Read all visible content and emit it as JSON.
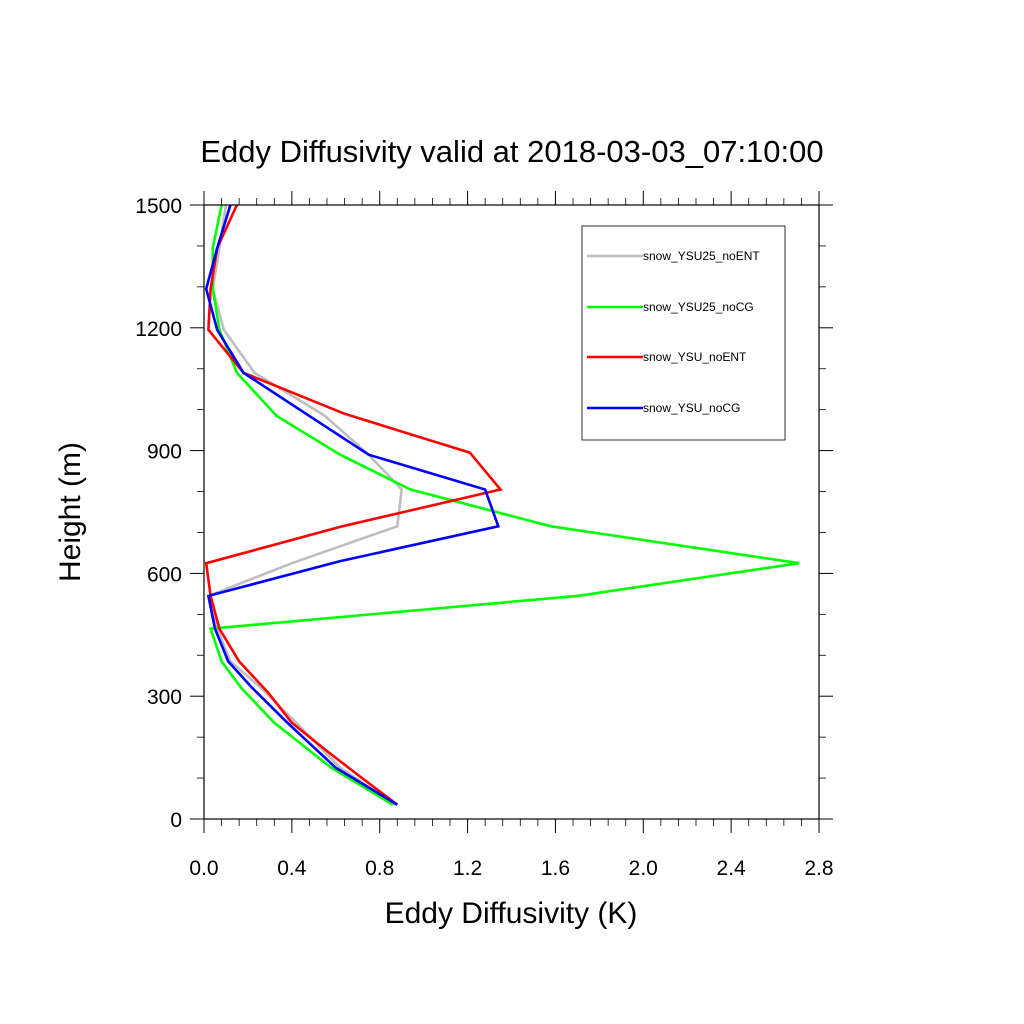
{
  "chart_data": {
    "type": "line",
    "title": "Eddy Diffusivity valid at 2018-03-03_07:10:00",
    "xlabel": "Eddy Diffusivity (K)",
    "ylabel": "Height (m)",
    "xlim": [
      0.0,
      2.8
    ],
    "ylim": [
      0,
      1500
    ],
    "xticks": [
      0.0,
      0.4,
      0.8,
      1.2,
      1.6,
      2.0,
      2.4,
      2.8
    ],
    "xtick_labels": [
      "0.0",
      "0.4",
      "0.8",
      "1.2",
      "1.6",
      "2.0",
      "2.4",
      "2.8"
    ],
    "yticks": [
      0,
      300,
      600,
      900,
      1200,
      1500
    ],
    "ytick_labels": [
      "0",
      "300",
      "600",
      "900",
      "1200",
      "1500"
    ],
    "grid": false,
    "legend_position": "top-right",
    "series": [
      {
        "name": "snow_YSU25_noENT",
        "color": "#bebebe",
        "points": [
          [
            0.87,
            35
          ],
          [
            0.62,
            125
          ],
          [
            0.42,
            235
          ],
          [
            0.26,
            320
          ],
          [
            0.12,
            385
          ],
          [
            0.06,
            465
          ],
          [
            0.02,
            545
          ],
          [
            0.4,
            625
          ],
          [
            0.88,
            715
          ],
          [
            0.9,
            805
          ],
          [
            0.75,
            890
          ],
          [
            0.55,
            985
          ],
          [
            0.23,
            1090
          ],
          [
            0.09,
            1195
          ],
          [
            0.04,
            1295
          ],
          [
            0.07,
            1395
          ],
          [
            0.1,
            1500
          ]
        ]
      },
      {
        "name": "snow_YSU25_noCG",
        "color": "#00ff00",
        "points": [
          [
            0.86,
            35
          ],
          [
            0.58,
            125
          ],
          [
            0.32,
            235
          ],
          [
            0.17,
            320
          ],
          [
            0.08,
            385
          ],
          [
            0.03,
            465
          ],
          [
            1.7,
            545
          ],
          [
            2.71,
            625
          ],
          [
            1.58,
            715
          ],
          [
            0.94,
            805
          ],
          [
            0.62,
            890
          ],
          [
            0.33,
            985
          ],
          [
            0.15,
            1090
          ],
          [
            0.07,
            1195
          ],
          [
            0.04,
            1295
          ],
          [
            0.04,
            1395
          ],
          [
            0.08,
            1500
          ]
        ]
      },
      {
        "name": "snow_YSU_noENT",
        "color": "#ff0000",
        "points": [
          [
            0.88,
            35
          ],
          [
            0.72,
            100
          ],
          [
            0.55,
            170
          ],
          [
            0.4,
            235
          ],
          [
            0.29,
            310
          ],
          [
            0.16,
            385
          ],
          [
            0.07,
            465
          ],
          [
            0.03,
            545
          ],
          [
            0.01,
            625
          ],
          [
            0.63,
            715
          ],
          [
            1.35,
            805
          ],
          [
            1.21,
            895
          ],
          [
            0.64,
            990
          ],
          [
            0.18,
            1090
          ],
          [
            0.02,
            1195
          ],
          [
            0.03,
            1295
          ],
          [
            0.06,
            1395
          ],
          [
            0.15,
            1500
          ]
        ]
      },
      {
        "name": "snow_YSU_noCG",
        "color": "#0000ff",
        "points": [
          [
            0.88,
            35
          ],
          [
            0.6,
            125
          ],
          [
            0.38,
            235
          ],
          [
            0.22,
            320
          ],
          [
            0.11,
            385
          ],
          [
            0.05,
            465
          ],
          [
            0.02,
            545
          ],
          [
            0.62,
            630
          ],
          [
            1.34,
            715
          ],
          [
            1.28,
            805
          ],
          [
            0.75,
            890
          ],
          [
            0.45,
            995
          ],
          [
            0.18,
            1090
          ],
          [
            0.06,
            1195
          ],
          [
            0.01,
            1295
          ],
          [
            0.06,
            1395
          ],
          [
            0.12,
            1500
          ]
        ]
      }
    ]
  }
}
